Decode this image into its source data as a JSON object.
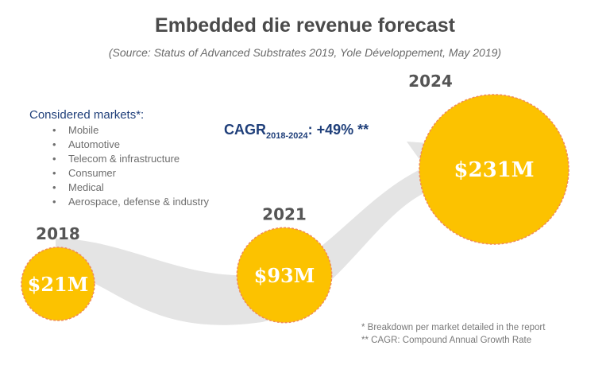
{
  "title": "Embedded die revenue forecast",
  "subtitle": "(Source: Status of Advanced Substrates 2019, Yole Développement, May 2019)",
  "markets": {
    "title": "Considered markets*:",
    "items": [
      "Mobile",
      "Automotive",
      "Telecom & infrastructure",
      "Consumer",
      "Medical",
      "Aerospace, defense & industry"
    ]
  },
  "cagr": {
    "label": "CAGR",
    "period": "2018-2024",
    "value": ": +49% **"
  },
  "footnotes": [
    "* Breakdown per market detailed in the report",
    "** CAGR: Compound Annual Growth Rate"
  ],
  "colors": {
    "bubble": "#fcc200",
    "bubble_border": "#f08a5a",
    "arrow": "#e4e4e4",
    "year_text": "#555555",
    "value_text": "#ffffff"
  },
  "chart_data": {
    "type": "bubble",
    "title": "Embedded die revenue forecast",
    "unit": "$M",
    "x": [
      2018,
      2021,
      2024
    ],
    "values": [
      21,
      93,
      231
    ],
    "labels": [
      "$21M",
      "$93M",
      "$231M"
    ],
    "cagr": "+49%"
  }
}
